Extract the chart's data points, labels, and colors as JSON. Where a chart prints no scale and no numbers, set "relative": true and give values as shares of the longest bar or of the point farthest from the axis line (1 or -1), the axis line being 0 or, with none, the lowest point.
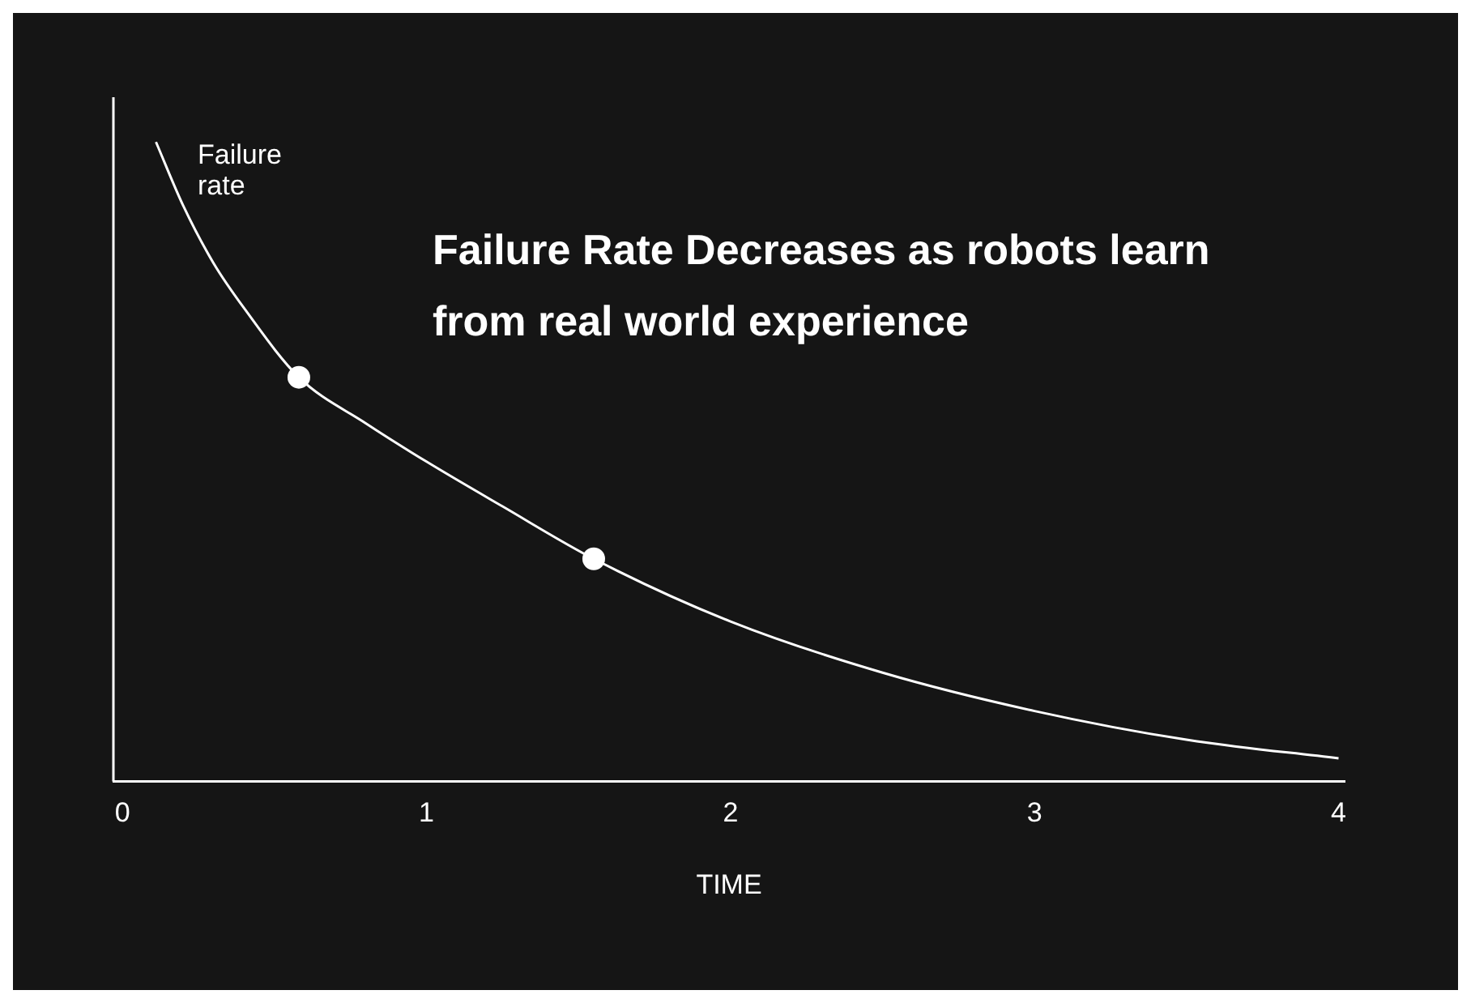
{
  "chart_data": {
    "type": "line",
    "title": "Failure Rate Decreases as robots learn from real world experience",
    "xlabel": "TIME",
    "ylabel": "Failure rate",
    "relative": true,
    "xlim": [
      -0.03,
      4.02
    ],
    "xticks": [
      0,
      1,
      2,
      3,
      4
    ],
    "grid": false,
    "legend": false,
    "series": [
      {
        "color": "#ffffff",
        "marker": "none",
        "x": [
          0.11,
          0.2,
          0.3,
          0.4,
          0.58,
          0.8,
          1.0,
          1.25,
          1.55,
          2.0,
          2.5,
          3.0,
          3.5,
          4.0
        ],
        "values": [
          1.0,
          0.9,
          0.81,
          0.74,
          0.632,
          0.56,
          0.5,
          0.43,
          0.348,
          0.25,
          0.17,
          0.11,
          0.065,
          0.036
        ]
      },
      {
        "type": "scatter",
        "color": "#ffffff",
        "marker": "circle",
        "x": [
          0.58,
          1.55
        ],
        "values": [
          0.632,
          0.348
        ]
      }
    ]
  }
}
